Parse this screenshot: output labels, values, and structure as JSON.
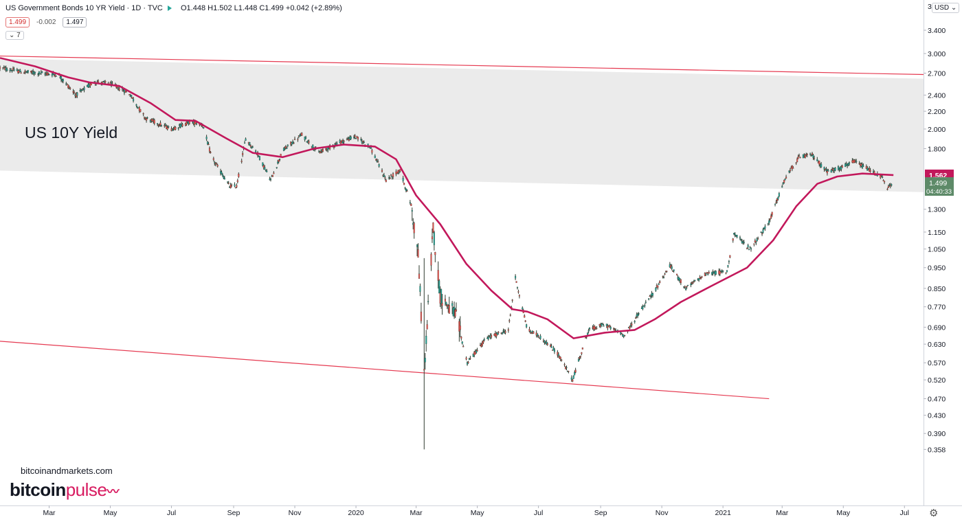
{
  "header": {
    "title": "US Government Bonds 10 YR Yield · 1D · TVC",
    "ohlc": "O1.448 H1.502 L1.448 C1.499 +0.042 (+2.89%)",
    "badge_sell": "1.499",
    "badge_change": "-0.002",
    "badge_buy": "1.497",
    "indicator": "7"
  },
  "price_scale": {
    "currency": "USD",
    "ma_label": "1.562",
    "price_label": "1.499",
    "countdown": "04:40:33",
    "top_cut_label": "3"
  },
  "annotation": "US 10Y Yield",
  "watermark": {
    "site": "bitcoinandmarkets.com",
    "logo_a": "bitcoin",
    "logo_b": "pulse"
  },
  "colors": {
    "up": "#26a69a",
    "down": "#ef5350",
    "ma": "#c2185b",
    "channel": "#e53950",
    "zone": "#ebebeb",
    "ma_badge": "#c2185b",
    "price_badge": "#5d8a68"
  },
  "chart_data": {
    "type": "candlestick",
    "scale": "log",
    "x_range": [
      "2019-01-11",
      "2021-07-20"
    ],
    "y_ticks": [
      3.4,
      3.0,
      2.7,
      2.4,
      2.2,
      2.0,
      1.8,
      1.3,
      1.15,
      1.05,
      0.95,
      0.85,
      0.77,
      0.69,
      0.63,
      0.57,
      0.52,
      0.47,
      0.43,
      0.39,
      0.358
    ],
    "x_ticks": [
      {
        "label": "Mar",
        "date": "2019-03-01"
      },
      {
        "label": "May",
        "date": "2019-05-01"
      },
      {
        "label": "Jul",
        "date": "2019-07-01"
      },
      {
        "label": "Sep",
        "date": "2019-09-01"
      },
      {
        "label": "Nov",
        "date": "2019-11-01"
      },
      {
        "label": "2020",
        "date": "2020-01-01"
      },
      {
        "label": "Mar",
        "date": "2020-03-01"
      },
      {
        "label": "May",
        "date": "2020-05-01"
      },
      {
        "label": "Jul",
        "date": "2020-07-01"
      },
      {
        "label": "Sep",
        "date": "2020-09-01"
      },
      {
        "label": "Nov",
        "date": "2020-11-01"
      },
      {
        "label": "2021",
        "date": "2021-01-01"
      },
      {
        "label": "Mar",
        "date": "2021-03-01"
      },
      {
        "label": "May",
        "date": "2021-05-01"
      },
      {
        "label": "Jul",
        "date": "2021-07-01"
      }
    ],
    "price_path": [
      [
        "2019-01-11",
        2.78
      ],
      [
        "2019-02-01",
        2.72
      ],
      [
        "2019-02-20",
        2.7
      ],
      [
        "2019-03-10",
        2.68
      ],
      [
        "2019-03-28",
        2.4
      ],
      [
        "2019-04-15",
        2.58
      ],
      [
        "2019-05-01",
        2.55
      ],
      [
        "2019-05-20",
        2.42
      ],
      [
        "2019-06-05",
        2.12
      ],
      [
        "2019-06-20",
        2.05
      ],
      [
        "2019-07-01",
        2.0
      ],
      [
        "2019-07-20",
        2.08
      ],
      [
        "2019-08-01",
        2.05
      ],
      [
        "2019-08-10",
        1.72
      ],
      [
        "2019-08-28",
        1.47
      ],
      [
        "2019-09-04",
        1.47
      ],
      [
        "2019-09-13",
        1.9
      ],
      [
        "2019-09-25",
        1.75
      ],
      [
        "2019-10-08",
        1.52
      ],
      [
        "2019-10-20",
        1.78
      ],
      [
        "2019-11-08",
        1.94
      ],
      [
        "2019-11-25",
        1.76
      ],
      [
        "2019-12-15",
        1.86
      ],
      [
        "2019-12-31",
        1.92
      ],
      [
        "2020-01-15",
        1.82
      ],
      [
        "2020-01-31",
        1.52
      ],
      [
        "2020-02-14",
        1.6
      ],
      [
        "2020-02-25",
        1.33
      ],
      [
        "2020-03-03",
        1.02
      ],
      [
        "2020-03-09",
        0.54
      ],
      [
        "2020-03-18",
        1.18
      ],
      [
        "2020-03-25",
        0.82
      ],
      [
        "2020-04-10",
        0.73
      ],
      [
        "2020-04-21",
        0.57
      ],
      [
        "2020-05-10",
        0.65
      ],
      [
        "2020-06-01",
        0.68
      ],
      [
        "2020-06-08",
        0.9
      ],
      [
        "2020-06-20",
        0.68
      ],
      [
        "2020-07-01",
        0.66
      ],
      [
        "2020-07-20",
        0.6
      ],
      [
        "2020-08-04",
        0.52
      ],
      [
        "2020-08-20",
        0.68
      ],
      [
        "2020-09-05",
        0.7
      ],
      [
        "2020-09-25",
        0.66
      ],
      [
        "2020-10-10",
        0.75
      ],
      [
        "2020-10-25",
        0.84
      ],
      [
        "2020-11-09",
        0.96
      ],
      [
        "2020-11-25",
        0.85
      ],
      [
        "2020-12-15",
        0.92
      ],
      [
        "2021-01-05",
        0.93
      ],
      [
        "2021-01-12",
        1.14
      ],
      [
        "2021-01-28",
        1.05
      ],
      [
        "2021-02-15",
        1.2
      ],
      [
        "2021-03-05",
        1.55
      ],
      [
        "2021-03-18",
        1.72
      ],
      [
        "2021-03-31",
        1.74
      ],
      [
        "2021-04-15",
        1.59
      ],
      [
        "2021-04-30",
        1.63
      ],
      [
        "2021-05-12",
        1.68
      ],
      [
        "2021-05-28",
        1.6
      ],
      [
        "2021-06-08",
        1.55
      ],
      [
        "2021-06-14",
        1.45
      ],
      [
        "2021-06-18",
        1.49
      ]
    ],
    "moving_average": [
      [
        "2019-01-11",
        2.93
      ],
      [
        "2019-02-15",
        2.8
      ],
      [
        "2019-03-20",
        2.64
      ],
      [
        "2019-04-10",
        2.57
      ],
      [
        "2019-05-10",
        2.52
      ],
      [
        "2019-06-10",
        2.3
      ],
      [
        "2019-07-05",
        2.1
      ],
      [
        "2019-07-25",
        2.09
      ],
      [
        "2019-08-25",
        1.9
      ],
      [
        "2019-09-20",
        1.76
      ],
      [
        "2019-10-20",
        1.72
      ],
      [
        "2019-11-20",
        1.8
      ],
      [
        "2019-12-20",
        1.84
      ],
      [
        "2020-01-20",
        1.82
      ],
      [
        "2020-02-10",
        1.7
      ],
      [
        "2020-03-01",
        1.4
      ],
      [
        "2020-03-25",
        1.2
      ],
      [
        "2020-04-20",
        0.97
      ],
      [
        "2020-05-15",
        0.84
      ],
      [
        "2020-06-05",
        0.76
      ],
      [
        "2020-06-20",
        0.75
      ],
      [
        "2020-07-10",
        0.72
      ],
      [
        "2020-08-05",
        0.65
      ],
      [
        "2020-09-05",
        0.67
      ],
      [
        "2020-10-05",
        0.68
      ],
      [
        "2020-10-25",
        0.72
      ],
      [
        "2020-11-20",
        0.79
      ],
      [
        "2020-12-20",
        0.86
      ],
      [
        "2021-01-25",
        0.95
      ],
      [
        "2021-02-20",
        1.1
      ],
      [
        "2021-03-15",
        1.32
      ],
      [
        "2021-04-05",
        1.49
      ],
      [
        "2021-04-25",
        1.55
      ],
      [
        "2021-05-20",
        1.575
      ],
      [
        "2021-06-20",
        1.562
      ]
    ],
    "channel_upper": [
      [
        "2019-01-11",
        2.96
      ],
      [
        "2021-07-20",
        2.68
      ]
    ],
    "channel_lower": [
      [
        "2019-01-11",
        0.64
      ],
      [
        "2021-02-16",
        0.47
      ]
    ],
    "zone": {
      "top": [
        [
          "2019-01-11",
          2.92
        ],
        [
          "2021-07-20",
          2.62
        ]
      ],
      "bottom": [
        [
          "2019-01-11",
          1.6
        ],
        [
          "2021-07-20",
          1.425
        ]
      ]
    },
    "spike": {
      "date": "2020-03-09",
      "low": 0.358
    }
  }
}
